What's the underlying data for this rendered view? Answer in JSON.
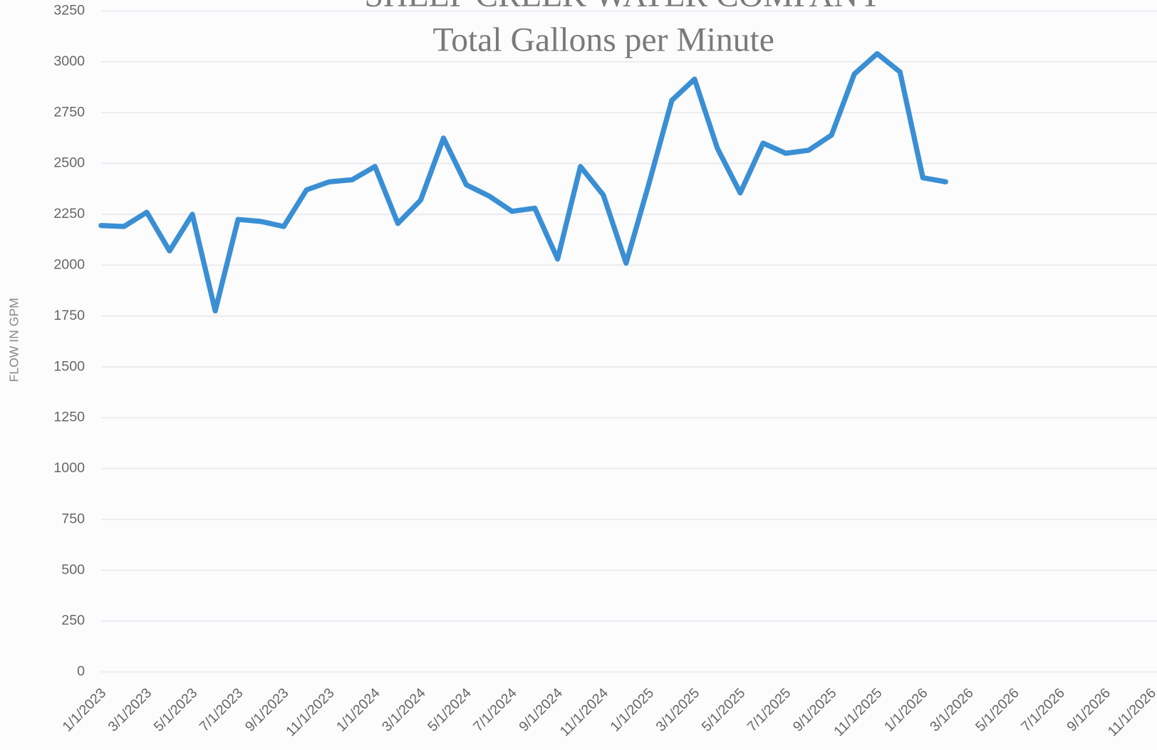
{
  "chart_data": {
    "type": "line",
    "title": "SHEEP CREEK WATER COMPANY",
    "subtitle": "Total Gallons per Minute",
    "y_label": "FLOW IN GPM",
    "categories": [
      "1/1/2023",
      null,
      "3/1/2023",
      null,
      "5/1/2023",
      null,
      "7/1/2023",
      null,
      "9/1/2023",
      null,
      "11/1/2023",
      null,
      "1/1/2024",
      null,
      "3/1/2024",
      null,
      "5/1/2024",
      null,
      "7/1/2024",
      null,
      "9/1/2024",
      null,
      "11/1/2024",
      null,
      "1/1/2025",
      null,
      "3/1/2025",
      null,
      "5/1/2025",
      null,
      "7/1/2025",
      null,
      "9/1/2025",
      null,
      "11/1/2025",
      null,
      "1/1/2026",
      null,
      "3/1/2026",
      null,
      "5/1/2026",
      null,
      "7/1/2026",
      null,
      "9/1/2026",
      null,
      "11/1/2026"
    ],
    "values": [
      2195,
      2190,
      2260,
      2070,
      2250,
      1775,
      2225,
      2215,
      2190,
      2370,
      2410,
      2420,
      2485,
      2205,
      2320,
      2625,
      2395,
      2340,
      2265,
      2280,
      2030,
      2485,
      2345,
      2010,
      2400,
      2810,
      2915,
      2575,
      2355,
      2600,
      2550,
      2565,
      2640,
      2940,
      3040,
      2950,
      2430,
      2410,
      null,
      null,
      null,
      null,
      null,
      null,
      null,
      null,
      null
    ],
    "color": "#3a8fd4",
    "ylim": [
      0,
      3250
    ],
    "yticks": [
      0,
      250,
      500,
      750,
      1000,
      1250,
      1500,
      1750,
      2000,
      2250,
      2500,
      2750,
      3000,
      3250
    ],
    "grid": true
  }
}
